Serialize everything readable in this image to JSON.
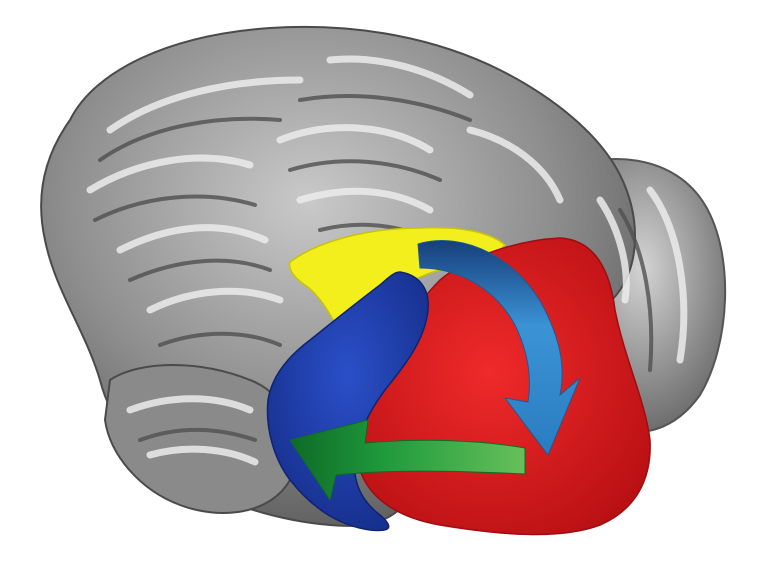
{
  "figure": {
    "subject": "brain",
    "colors": {
      "background": "#ffffff",
      "cortex": "#8c8c8c",
      "cortex_highlight": "#e6e6e6",
      "cortex_shadow": "#4a4a4a",
      "region_yellow": "#f2ef1c",
      "region_blue": "#1e3fb0",
      "region_red": "#e01a1e",
      "arrow_blue": "#2d7fc4",
      "arrow_green": "#1f9a3c"
    },
    "regions": [
      {
        "color_name": "yellow",
        "color": "#f2ef1c"
      },
      {
        "color_name": "blue",
        "color": "#1e3fb0"
      },
      {
        "color_name": "red",
        "color": "#e01a1e"
      }
    ],
    "arrows": [
      {
        "color_name": "blue",
        "from": "yellow",
        "to": "red",
        "color": "#2d7fc4"
      },
      {
        "color_name": "green",
        "from": "red",
        "to": "blue",
        "color": "#1f9a3c"
      }
    ]
  }
}
